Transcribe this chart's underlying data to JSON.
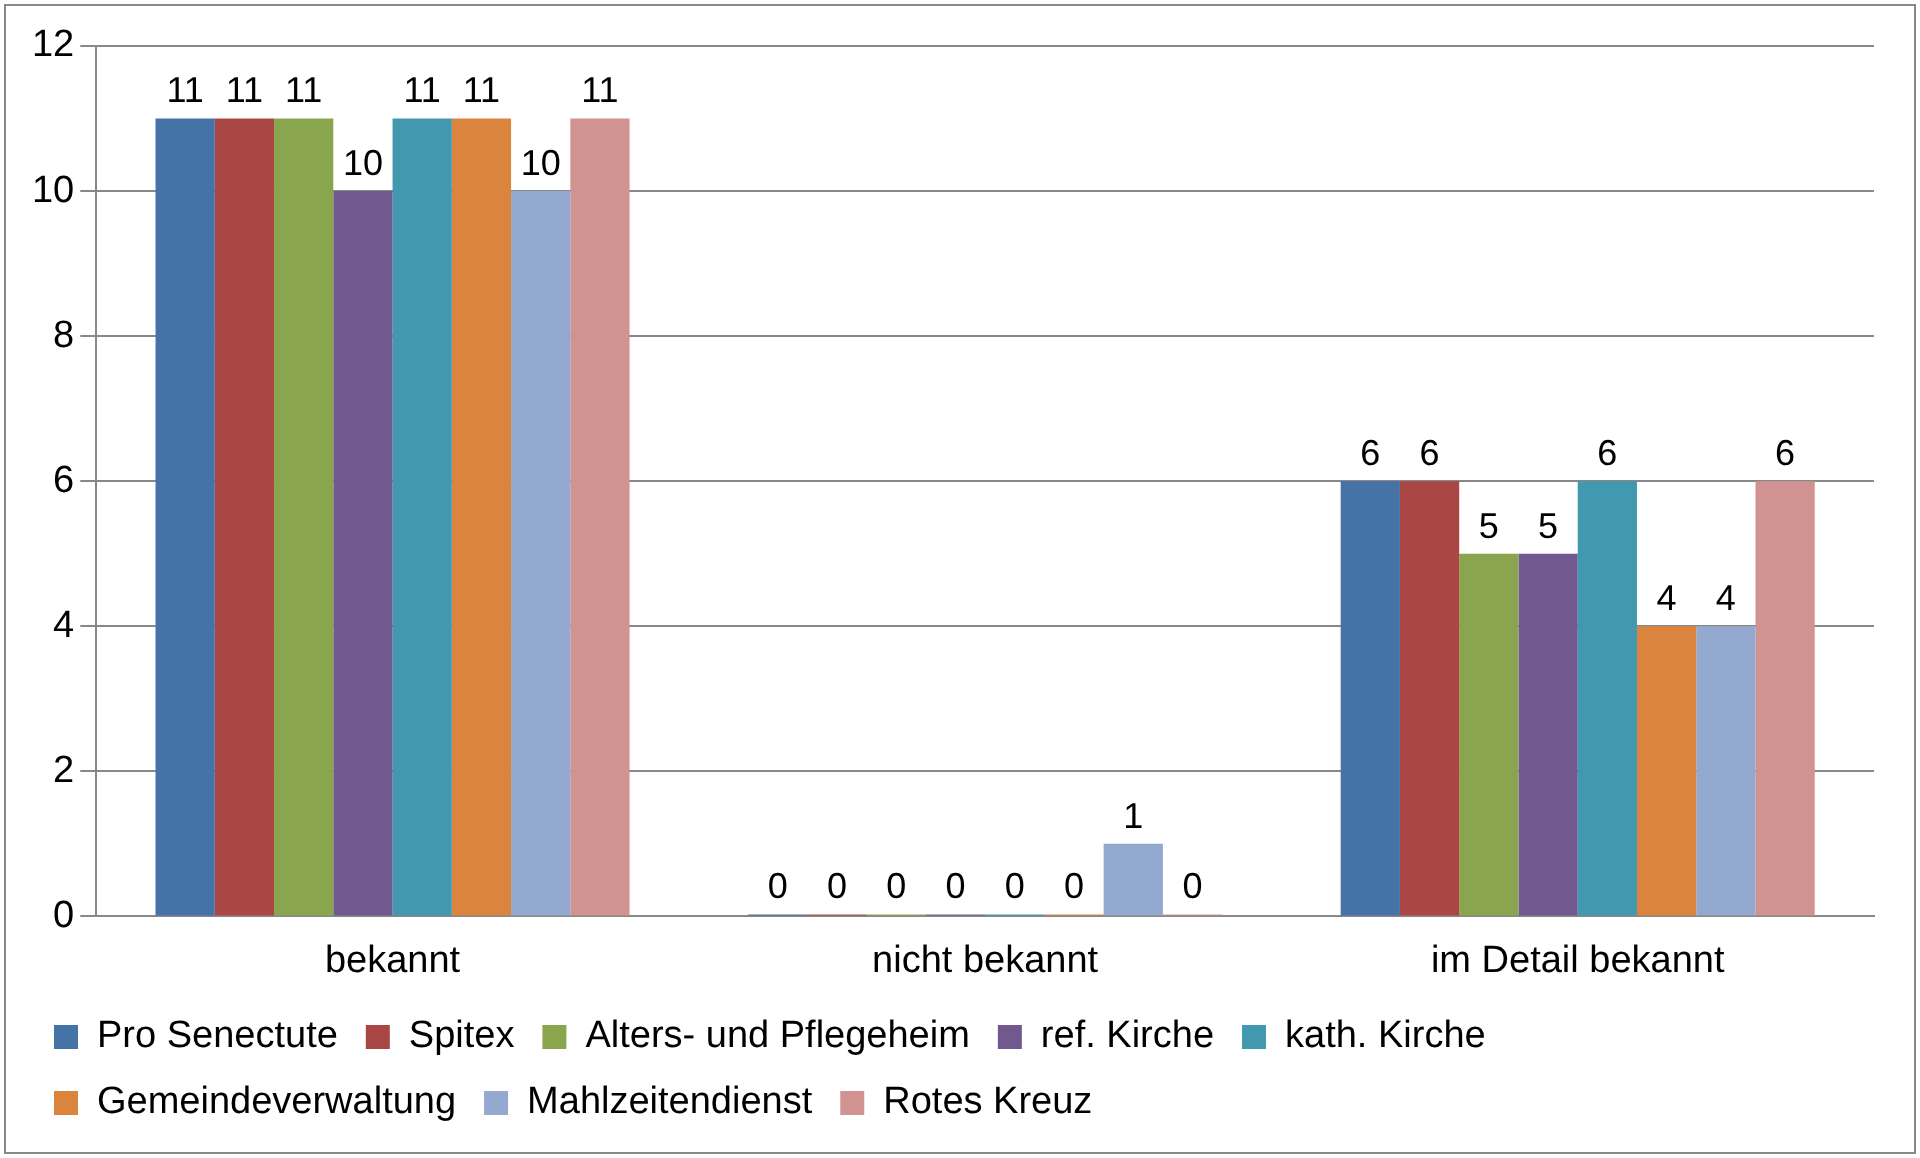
{
  "chart_data": {
    "type": "bar",
    "categories": [
      "bekannt",
      "nicht bekannt",
      "im Detail bekannt"
    ],
    "series": [
      {
        "name": "Pro Senectute",
        "color": "#4572a7",
        "values": [
          11,
          0,
          6
        ]
      },
      {
        "name": "Spitex",
        "color": "#aa4643",
        "values": [
          11,
          0,
          6
        ]
      },
      {
        "name": "Alters- und Pflegeheim",
        "color": "#89a54e",
        "values": [
          11,
          0,
          5
        ]
      },
      {
        "name": "ref. Kirche",
        "color": "#71588f",
        "values": [
          10,
          0,
          5
        ]
      },
      {
        "name": "kath. Kirche",
        "color": "#4198af",
        "values": [
          11,
          0,
          6
        ]
      },
      {
        "name": "Gemeindeverwaltung",
        "color": "#db843d",
        "values": [
          11,
          0,
          4
        ]
      },
      {
        "name": "Mahlzeitendienst",
        "color": "#93a9cf",
        "values": [
          10,
          1,
          4
        ]
      },
      {
        "name": "Rotes Kreuz",
        "color": "#d19392",
        "values": [
          11,
          0,
          6
        ]
      }
    ],
    "ylim": [
      0,
      12
    ],
    "yticks": [
      0,
      2,
      4,
      6,
      8,
      10,
      12
    ],
    "grid": "y",
    "legend": "bottom",
    "data_labels": true
  }
}
